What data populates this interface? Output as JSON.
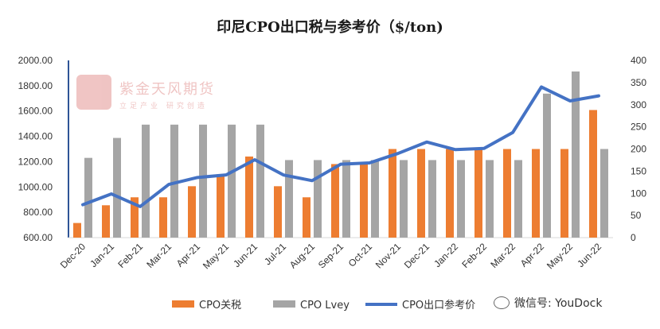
{
  "chart_data": {
    "type": "bar",
    "title": "印尼CPO出口税与参考价（$/ton)",
    "categories": [
      "Dec-20",
      "Jan-21",
      "Feb-21",
      "Mar-21",
      "Apr-21",
      "May-21",
      "Jun-21",
      "Jul-21",
      "Aug-21",
      "Sep-21",
      "Oct-21",
      "Nov-21",
      "Dec-21",
      "Jan-22",
      "Feb-22",
      "Mar-22",
      "Apr-22",
      "May-22",
      "Jun-22"
    ],
    "y_left": {
      "min": 600,
      "max": 2000,
      "step": 200,
      "tick_labels": [
        "600.00",
        "800.00",
        "1000.00",
        "1200.00",
        "1400.00",
        "1600.00",
        "1800.00",
        "2000.00"
      ]
    },
    "y_right": {
      "min": 0,
      "max": 400,
      "step": 50,
      "tick_labels": [
        "0",
        "50",
        "100",
        "150",
        "200",
        "250",
        "300",
        "350",
        "400"
      ]
    },
    "series": [
      {
        "name": "CPO关税",
        "type": "bar",
        "axis": "right",
        "color": "#ed7d31",
        "values": [
          33,
          73,
          91,
          91,
          116,
          143,
          183,
          116,
          91,
          166,
          166,
          200,
          200,
          200,
          200,
          200,
          200,
          200,
          288
        ]
      },
      {
        "name": "CPO Lvey",
        "type": "bar",
        "axis": "right",
        "color": "#a5a5a5",
        "values": [
          180,
          225,
          255,
          255,
          255,
          255,
          255,
          175,
          175,
          175,
          175,
          175,
          175,
          175,
          175,
          175,
          325,
          375,
          200
        ]
      },
      {
        "name": "CPO出口参考价",
        "type": "line",
        "axis": "left",
        "color": "#4472c4",
        "values": [
          860,
          945,
          845,
          1020,
          1075,
          1095,
          1215,
          1095,
          1050,
          1180,
          1190,
          1265,
          1355,
          1295,
          1305,
          1430,
          1790,
          1680,
          1720
        ]
      }
    ],
    "legend_position": "bottom",
    "grid": false
  },
  "watermark": {
    "name": "紫金天风期货",
    "tagline": "立足产业 研究创造"
  },
  "wechat_label": "微信号: YouDock"
}
